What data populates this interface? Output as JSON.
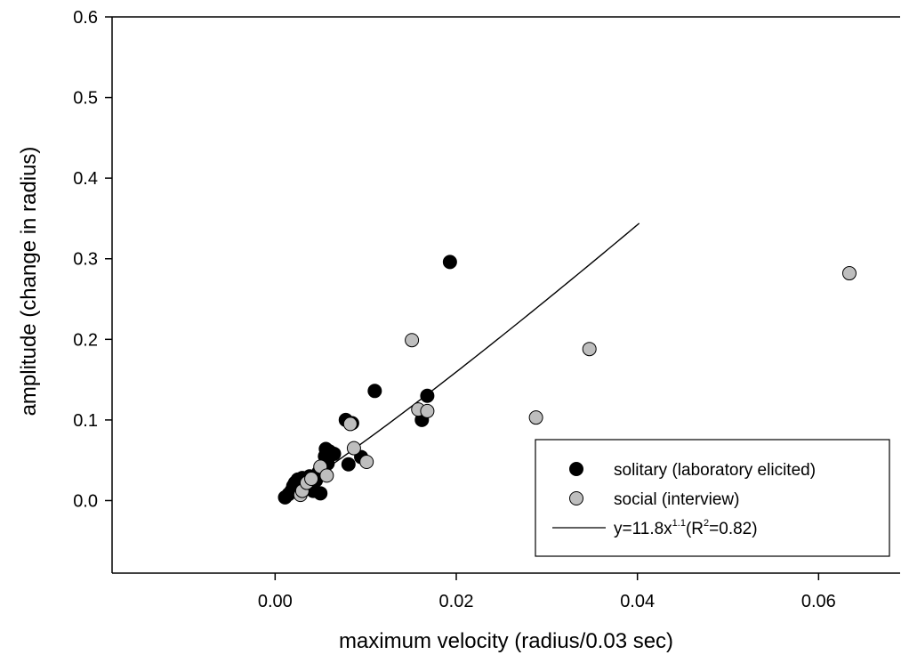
{
  "chart_data": {
    "type": "scatter",
    "xlabel": "maximum velocity (radius/0.03 sec)",
    "ylabel": "amplitude (change in radius)",
    "xlim": [
      -0.018,
      0.069
    ],
    "ylim": [
      -0.09,
      0.6
    ],
    "x_ticks": [
      "0.00",
      "0.02",
      "0.04",
      "0.06"
    ],
    "x_tick_values": [
      0.0,
      0.02,
      0.04,
      0.06
    ],
    "y_ticks": [
      "0.0",
      "0.1",
      "0.2",
      "0.3",
      "0.4",
      "0.5",
      "0.6"
    ],
    "y_tick_values": [
      0.0,
      0.1,
      0.2,
      0.3,
      0.4,
      0.5,
      0.6
    ],
    "grid": false,
    "legend_position": "bottom-right",
    "series": [
      {
        "name": "solitary (laboratory elicited)",
        "color": "#000000",
        "points": [
          [
            0.0011,
            0.004
          ],
          [
            0.0015,
            0.008
          ],
          [
            0.0018,
            0.012
          ],
          [
            0.002,
            0.018
          ],
          [
            0.0022,
            0.022
          ],
          [
            0.0025,
            0.026
          ],
          [
            0.0028,
            0.015
          ],
          [
            0.003,
            0.028
          ],
          [
            0.0035,
            0.02
          ],
          [
            0.0038,
            0.03
          ],
          [
            0.0042,
            0.012
          ],
          [
            0.0045,
            0.025
          ],
          [
            0.0048,
            0.035
          ],
          [
            0.005,
            0.009
          ],
          [
            0.0055,
            0.055
          ],
          [
            0.0056,
            0.064
          ],
          [
            0.0058,
            0.046
          ],
          [
            0.006,
            0.061
          ],
          [
            0.0065,
            0.058
          ],
          [
            0.0078,
            0.1
          ],
          [
            0.0081,
            0.045
          ],
          [
            0.0085,
            0.096
          ],
          [
            0.0095,
            0.054
          ],
          [
            0.011,
            0.136
          ],
          [
            0.0162,
            0.1
          ],
          [
            0.0168,
            0.13
          ],
          [
            0.0193,
            0.296
          ]
        ]
      },
      {
        "name": "social (interview)",
        "color": "#bebebe",
        "points": [
          [
            0.0028,
            0.007
          ],
          [
            0.003,
            0.012
          ],
          [
            0.0035,
            0.022
          ],
          [
            0.004,
            0.027
          ],
          [
            0.005,
            0.042
          ],
          [
            0.0057,
            0.031
          ],
          [
            0.0083,
            0.095
          ],
          [
            0.0087,
            0.065
          ],
          [
            0.0101,
            0.048
          ],
          [
            0.0151,
            0.199
          ],
          [
            0.0158,
            0.113
          ],
          [
            0.0168,
            0.111
          ],
          [
            0.0288,
            0.103
          ],
          [
            0.0347,
            0.188
          ],
          [
            0.0634,
            0.282
          ]
        ]
      }
    ],
    "fit": {
      "name": "y=11.8x",
      "exponent_sup": "1.1",
      "r2_open": "(R",
      "r2_sup": "2",
      "r2_close": "=0.82)",
      "a": 11.8,
      "b": 1.1,
      "x_range": [
        0.001,
        0.0402
      ],
      "color": "#000000"
    }
  }
}
